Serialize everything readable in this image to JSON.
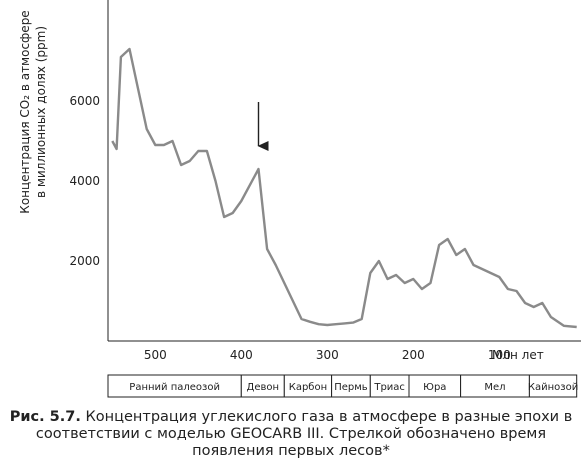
{
  "chart_data": {
    "type": "line",
    "ylabel_line1": "Концентрация CO₂ в атмосфере",
    "ylabel_line2": "в миллионных долях (ppm)",
    "xlabel": "Млн лет",
    "x_reversed": true,
    "xlim": [
      555,
      5
    ],
    "ylim": [
      0,
      8400
    ],
    "x_ticks": [
      500,
      400,
      300,
      200,
      100
    ],
    "y_ticks": [
      2000,
      4000,
      6000
    ],
    "series": [
      {
        "x": [
          550,
          545,
          540,
          530,
          520,
          510,
          500,
          490,
          480,
          470,
          460,
          450,
          440,
          430,
          420,
          410,
          400,
          380,
          370,
          360,
          340,
          330,
          320,
          310,
          300,
          290,
          280,
          270,
          260,
          250,
          240,
          230,
          220,
          210,
          200,
          190,
          180,
          170,
          160,
          150,
          140,
          130,
          120,
          110,
          100,
          90,
          80,
          70,
          60,
          50,
          40,
          25,
          10
        ],
        "y": [
          5000,
          4800,
          7100,
          7300,
          6300,
          5300,
          4900,
          4900,
          5000,
          4400,
          4500,
          4750,
          4750,
          4000,
          3100,
          3200,
          3500,
          4300,
          2300,
          1900,
          1000,
          550,
          480,
          420,
          400,
          420,
          440,
          460,
          550,
          1700,
          2000,
          1550,
          1650,
          1450,
          1550,
          1300,
          1450,
          2400,
          2550,
          2150,
          2300,
          1900,
          1800,
          1700,
          1600,
          1300,
          1250,
          950,
          850,
          950,
          600,
          380,
          350
        ]
      }
    ],
    "annotation": {
      "type": "arrow",
      "x": 380,
      "meaning": "time of appearance of the first forests"
    },
    "eras": [
      {
        "label": "Ранний палеозой",
        "from": 555,
        "to": 400
      },
      {
        "label": "Девон",
        "from": 400,
        "to": 350
      },
      {
        "label": "Карбон",
        "from": 350,
        "to": 295
      },
      {
        "label": "Пермь",
        "from": 295,
        "to": 250
      },
      {
        "label": "Триас",
        "from": 250,
        "to": 205
      },
      {
        "label": "Юра",
        "from": 205,
        "to": 145
      },
      {
        "label": "Мел",
        "from": 145,
        "to": 65
      },
      {
        "label": "Кайнозой",
        "from": 65,
        "to": 10
      }
    ]
  },
  "caption": {
    "lead": "Рис. 5.7.",
    "text": " Концентрация углекислого газа в атмосфере в разные эпохи в соответствии с моделью GEOCARB III. Стрелкой обозначено время появления первых лесов*"
  }
}
